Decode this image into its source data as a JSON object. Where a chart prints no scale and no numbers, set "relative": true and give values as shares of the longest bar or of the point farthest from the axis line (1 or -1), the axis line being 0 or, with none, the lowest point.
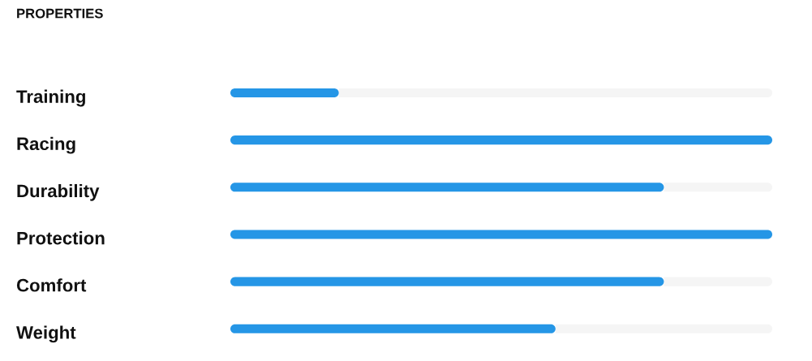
{
  "chart_data": {
    "type": "bar",
    "orientation": "horizontal",
    "stacked": true,
    "relative": true,
    "title": "PROPERTIES",
    "categories": [
      "Training",
      "Racing",
      "Durability",
      "Protection",
      "Comfort",
      "Weight"
    ],
    "series": [
      {
        "color": "#2596e6",
        "values": [
          0.2,
          1,
          0.8,
          1,
          0.8,
          0.6
        ]
      },
      {
        "color": "#f5f5f5",
        "values": [
          0.8,
          0,
          0.2,
          0,
          0.2,
          0.4
        ]
      }
    ]
  }
}
